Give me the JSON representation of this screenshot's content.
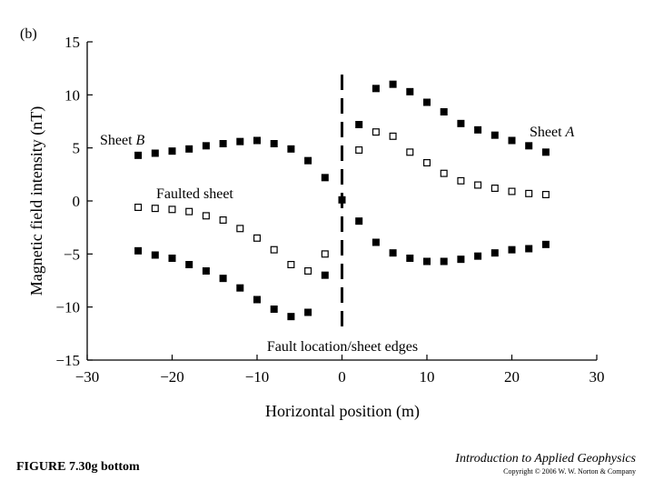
{
  "panel_label": "(b)",
  "figure_caption": "FIGURE 7.30g bottom",
  "book_title": "Introduction to Applied Geophysics",
  "copyright": "Copyright © 2006 W. W. Norton & Company",
  "chart_data": {
    "type": "scatter",
    "xlabel": "Horizontal position (m)",
    "ylabel": "Magnetic field intensity (nT)",
    "xlim": [
      -30,
      30
    ],
    "ylim": [
      -15,
      15
    ],
    "x_ticks": [
      -30,
      -20,
      -10,
      0,
      10,
      20,
      30
    ],
    "y_ticks": [
      -15,
      -10,
      -5,
      0,
      5,
      10,
      15
    ],
    "x_tick_labels": [
      "−30",
      "−20",
      "−10",
      "0",
      "10",
      "20",
      "30"
    ],
    "y_tick_labels": [
      "−15",
      "−10",
      "−5",
      "0",
      "5",
      "10",
      "15"
    ],
    "grid": false,
    "fault_line_label": "Fault location/sheet edges",
    "series": [
      {
        "name_parts": [
          "Sheet ",
          "B"
        ],
        "marker": "filled-square",
        "x": [
          -24,
          -22,
          -20,
          -18,
          -16,
          -14,
          -12,
          -10,
          -8,
          -6,
          -4,
          -2,
          0
        ],
        "y": [
          4.3,
          4.5,
          4.7,
          4.9,
          5.2,
          5.4,
          5.6,
          5.7,
          5.4,
          4.9,
          3.8,
          2.2,
          0.1
        ]
      },
      {
        "name_parts": [
          "Sheet ",
          "A"
        ],
        "marker": "filled-square",
        "x": [
          2,
          4,
          6,
          8,
          10,
          12,
          14,
          16,
          18,
          20,
          22,
          24
        ],
        "y": [
          7.2,
          10.6,
          11.0,
          10.3,
          9.3,
          8.4,
          7.3,
          6.7,
          6.2,
          5.7,
          5.2,
          4.6
        ]
      },
      {
        "name_parts": [
          "Faulted sheet"
        ],
        "marker": "open-square",
        "x": [
          -24,
          -22,
          -20,
          -18,
          -16,
          -14,
          -12,
          -10,
          -8,
          -6,
          -4,
          -2,
          2,
          4,
          6,
          8,
          10,
          12,
          14,
          16,
          18,
          20,
          22,
          24
        ],
        "y": [
          -0.6,
          -0.7,
          -0.8,
          -1.0,
          -1.4,
          -1.8,
          -2.6,
          -3.5,
          -4.6,
          -6.0,
          -6.6,
          -5.0,
          4.8,
          6.5,
          6.1,
          4.6,
          3.6,
          2.6,
          1.9,
          1.5,
          1.2,
          0.9,
          0.7,
          0.6
        ]
      },
      {
        "name_parts": [],
        "marker": "filled-square",
        "x": [
          -24,
          -22,
          -20,
          -18,
          -16,
          -14,
          -12,
          -10,
          -8,
          -6,
          -4,
          -2,
          2,
          4,
          6,
          8,
          10,
          12,
          14,
          16,
          18,
          20,
          22,
          24
        ],
        "y": [
          -4.7,
          -5.1,
          -5.4,
          -6.0,
          -6.6,
          -7.3,
          -8.2,
          -9.3,
          -10.2,
          -10.9,
          -10.5,
          -7.0,
          -1.9,
          -3.9,
          -4.9,
          -5.4,
          -5.7,
          -5.7,
          -5.5,
          -5.2,
          -4.9,
          -4.6,
          -4.5,
          -4.1
        ]
      }
    ]
  }
}
